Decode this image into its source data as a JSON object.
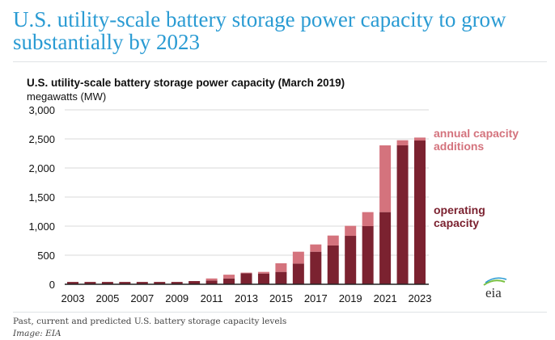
{
  "headline": "U.S. utility-scale battery storage power capacity to grow substantially by 2023",
  "caption": "Past, current and predicted U.S. battery storage capacity levels",
  "credit": "Image: EIA",
  "logo_text": "eia",
  "chart_data": {
    "type": "bar",
    "stacked": true,
    "title": "U.S. utility-scale battery storage power capacity (March 2019)",
    "ylabel": "megawatts (MW)",
    "ylim": [
      0,
      3000
    ],
    "yticks": [
      "0",
      "500",
      "1,000",
      "1,500",
      "2,000",
      "2,500",
      "3,000"
    ],
    "xticks": [
      "2003",
      "2005",
      "2007",
      "2009",
      "2011",
      "2013",
      "2015",
      "2017",
      "2019",
      "2021",
      "2023"
    ],
    "grid": true,
    "legend": "right",
    "categories": [
      2003,
      2004,
      2005,
      2006,
      2007,
      2008,
      2009,
      2010,
      2011,
      2012,
      2013,
      2014,
      2015,
      2016,
      2017,
      2018,
      2019,
      2020,
      2021,
      2022,
      2023
    ],
    "series": [
      {
        "name": "operating capacity",
        "color": "#7b2230",
        "values": [
          40,
          40,
          40,
          40,
          40,
          40,
          40,
          55,
          65,
          100,
          190,
          185,
          213,
          356,
          560,
          667,
          833,
          1000,
          1241,
          2389,
          2472
        ]
      },
      {
        "name": "annual capacity additions",
        "color": "#d4737d",
        "values": [
          0,
          0,
          0,
          0,
          0,
          0,
          0,
          0,
          35,
          65,
          10,
          28,
          148,
          204,
          125,
          171,
          172,
          241,
          1148,
          88,
          51
        ]
      }
    ]
  }
}
